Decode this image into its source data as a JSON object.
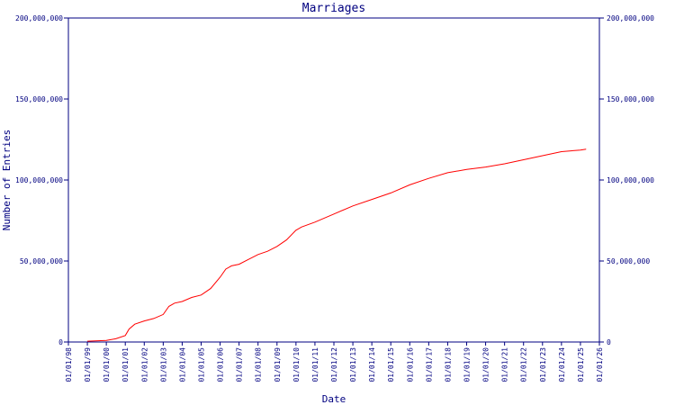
{
  "chart_data": {
    "type": "line",
    "title": "Marriages",
    "x_label": "Date",
    "y_label": "Number of Entries",
    "xlim": [
      1998,
      2026
    ],
    "xticks": [
      {
        "value": 1998,
        "label": "01/01/98"
      },
      {
        "value": 1999,
        "label": "01/01/99"
      },
      {
        "value": 2000,
        "label": "01/01/00"
      },
      {
        "value": 2001,
        "label": "01/01/01"
      },
      {
        "value": 2002,
        "label": "01/01/02"
      },
      {
        "value": 2003,
        "label": "01/01/03"
      },
      {
        "value": 2004,
        "label": "01/01/04"
      },
      {
        "value": 2005,
        "label": "01/01/05"
      },
      {
        "value": 2006,
        "label": "01/01/06"
      },
      {
        "value": 2007,
        "label": "01/01/07"
      },
      {
        "value": 2008,
        "label": "01/01/08"
      },
      {
        "value": 2009,
        "label": "01/01/09"
      },
      {
        "value": 2010,
        "label": "01/01/10"
      },
      {
        "value": 2011,
        "label": "01/01/11"
      },
      {
        "value": 2012,
        "label": "01/01/12"
      },
      {
        "value": 2013,
        "label": "01/01/13"
      },
      {
        "value": 2014,
        "label": "01/01/14"
      },
      {
        "value": 2015,
        "label": "01/01/15"
      },
      {
        "value": 2016,
        "label": "01/01/16"
      },
      {
        "value": 2017,
        "label": "01/01/17"
      },
      {
        "value": 2018,
        "label": "01/01/18"
      },
      {
        "value": 2019,
        "label": "01/01/19"
      },
      {
        "value": 2020,
        "label": "01/01/20"
      },
      {
        "value": 2021,
        "label": "01/01/21"
      },
      {
        "value": 2022,
        "label": "01/01/22"
      },
      {
        "value": 2023,
        "label": "01/01/23"
      },
      {
        "value": 2024,
        "label": "01/01/24"
      },
      {
        "value": 2025,
        "label": "01/01/25"
      },
      {
        "value": 2026,
        "label": "01/01/26"
      }
    ],
    "ylim": [
      0,
      200000000
    ],
    "yticks": [
      0,
      {
        "value": 50000000,
        "label": "50,000,000"
      },
      {
        "value": 100000000,
        "label": "100,000,000"
      },
      {
        "value": 150000000,
        "label": "150,000,000"
      },
      {
        "value": 200000000,
        "label": "200,000,000"
      }
    ],
    "y2lim": [
      0,
      200000000
    ],
    "y2ticks": [
      0,
      {
        "value": 50000000,
        "label": "50,000,000"
      },
      {
        "value": 100000000,
        "label": "100,000,000"
      },
      {
        "value": 150000000,
        "label": "150,000,000"
      },
      {
        "value": 200000000,
        "label": "200,000,000"
      }
    ],
    "axis_color": "#000080",
    "x": [
      1999,
      2000,
      2000.5,
      2001,
      2001.2,
      2001.5,
      2002,
      2002.5,
      2003,
      2003.3,
      2003.6,
      2004,
      2004.5,
      2005,
      2005.5,
      2006,
      2006.3,
      2006.6,
      2007,
      2007.5,
      2008,
      2008.5,
      2009,
      2009.5,
      2010,
      2010.3,
      2011,
      2012,
      2013,
      2014,
      2015,
      2016,
      2017,
      2018,
      2019,
      2020,
      2021,
      2022,
      2023,
      2024,
      2025,
      2025.3
    ],
    "series": [
      {
        "color": "#ff0000",
        "values": [
          500000,
          1000000,
          2000000,
          4000000,
          8000000,
          11000000,
          13000000,
          14500000,
          17000000,
          22000000,
          24000000,
          25000000,
          27500000,
          29000000,
          33000000,
          40000000,
          45000000,
          47000000,
          48000000,
          51000000,
          54000000,
          56000000,
          59000000,
          63000000,
          69000000,
          71000000,
          74000000,
          79000000,
          84000000,
          88000000,
          92000000,
          97000000,
          101000000,
          104500000,
          106500000,
          108000000,
          110000000,
          112500000,
          115000000,
          117500000,
          118500000,
          119000000
        ]
      }
    ]
  }
}
